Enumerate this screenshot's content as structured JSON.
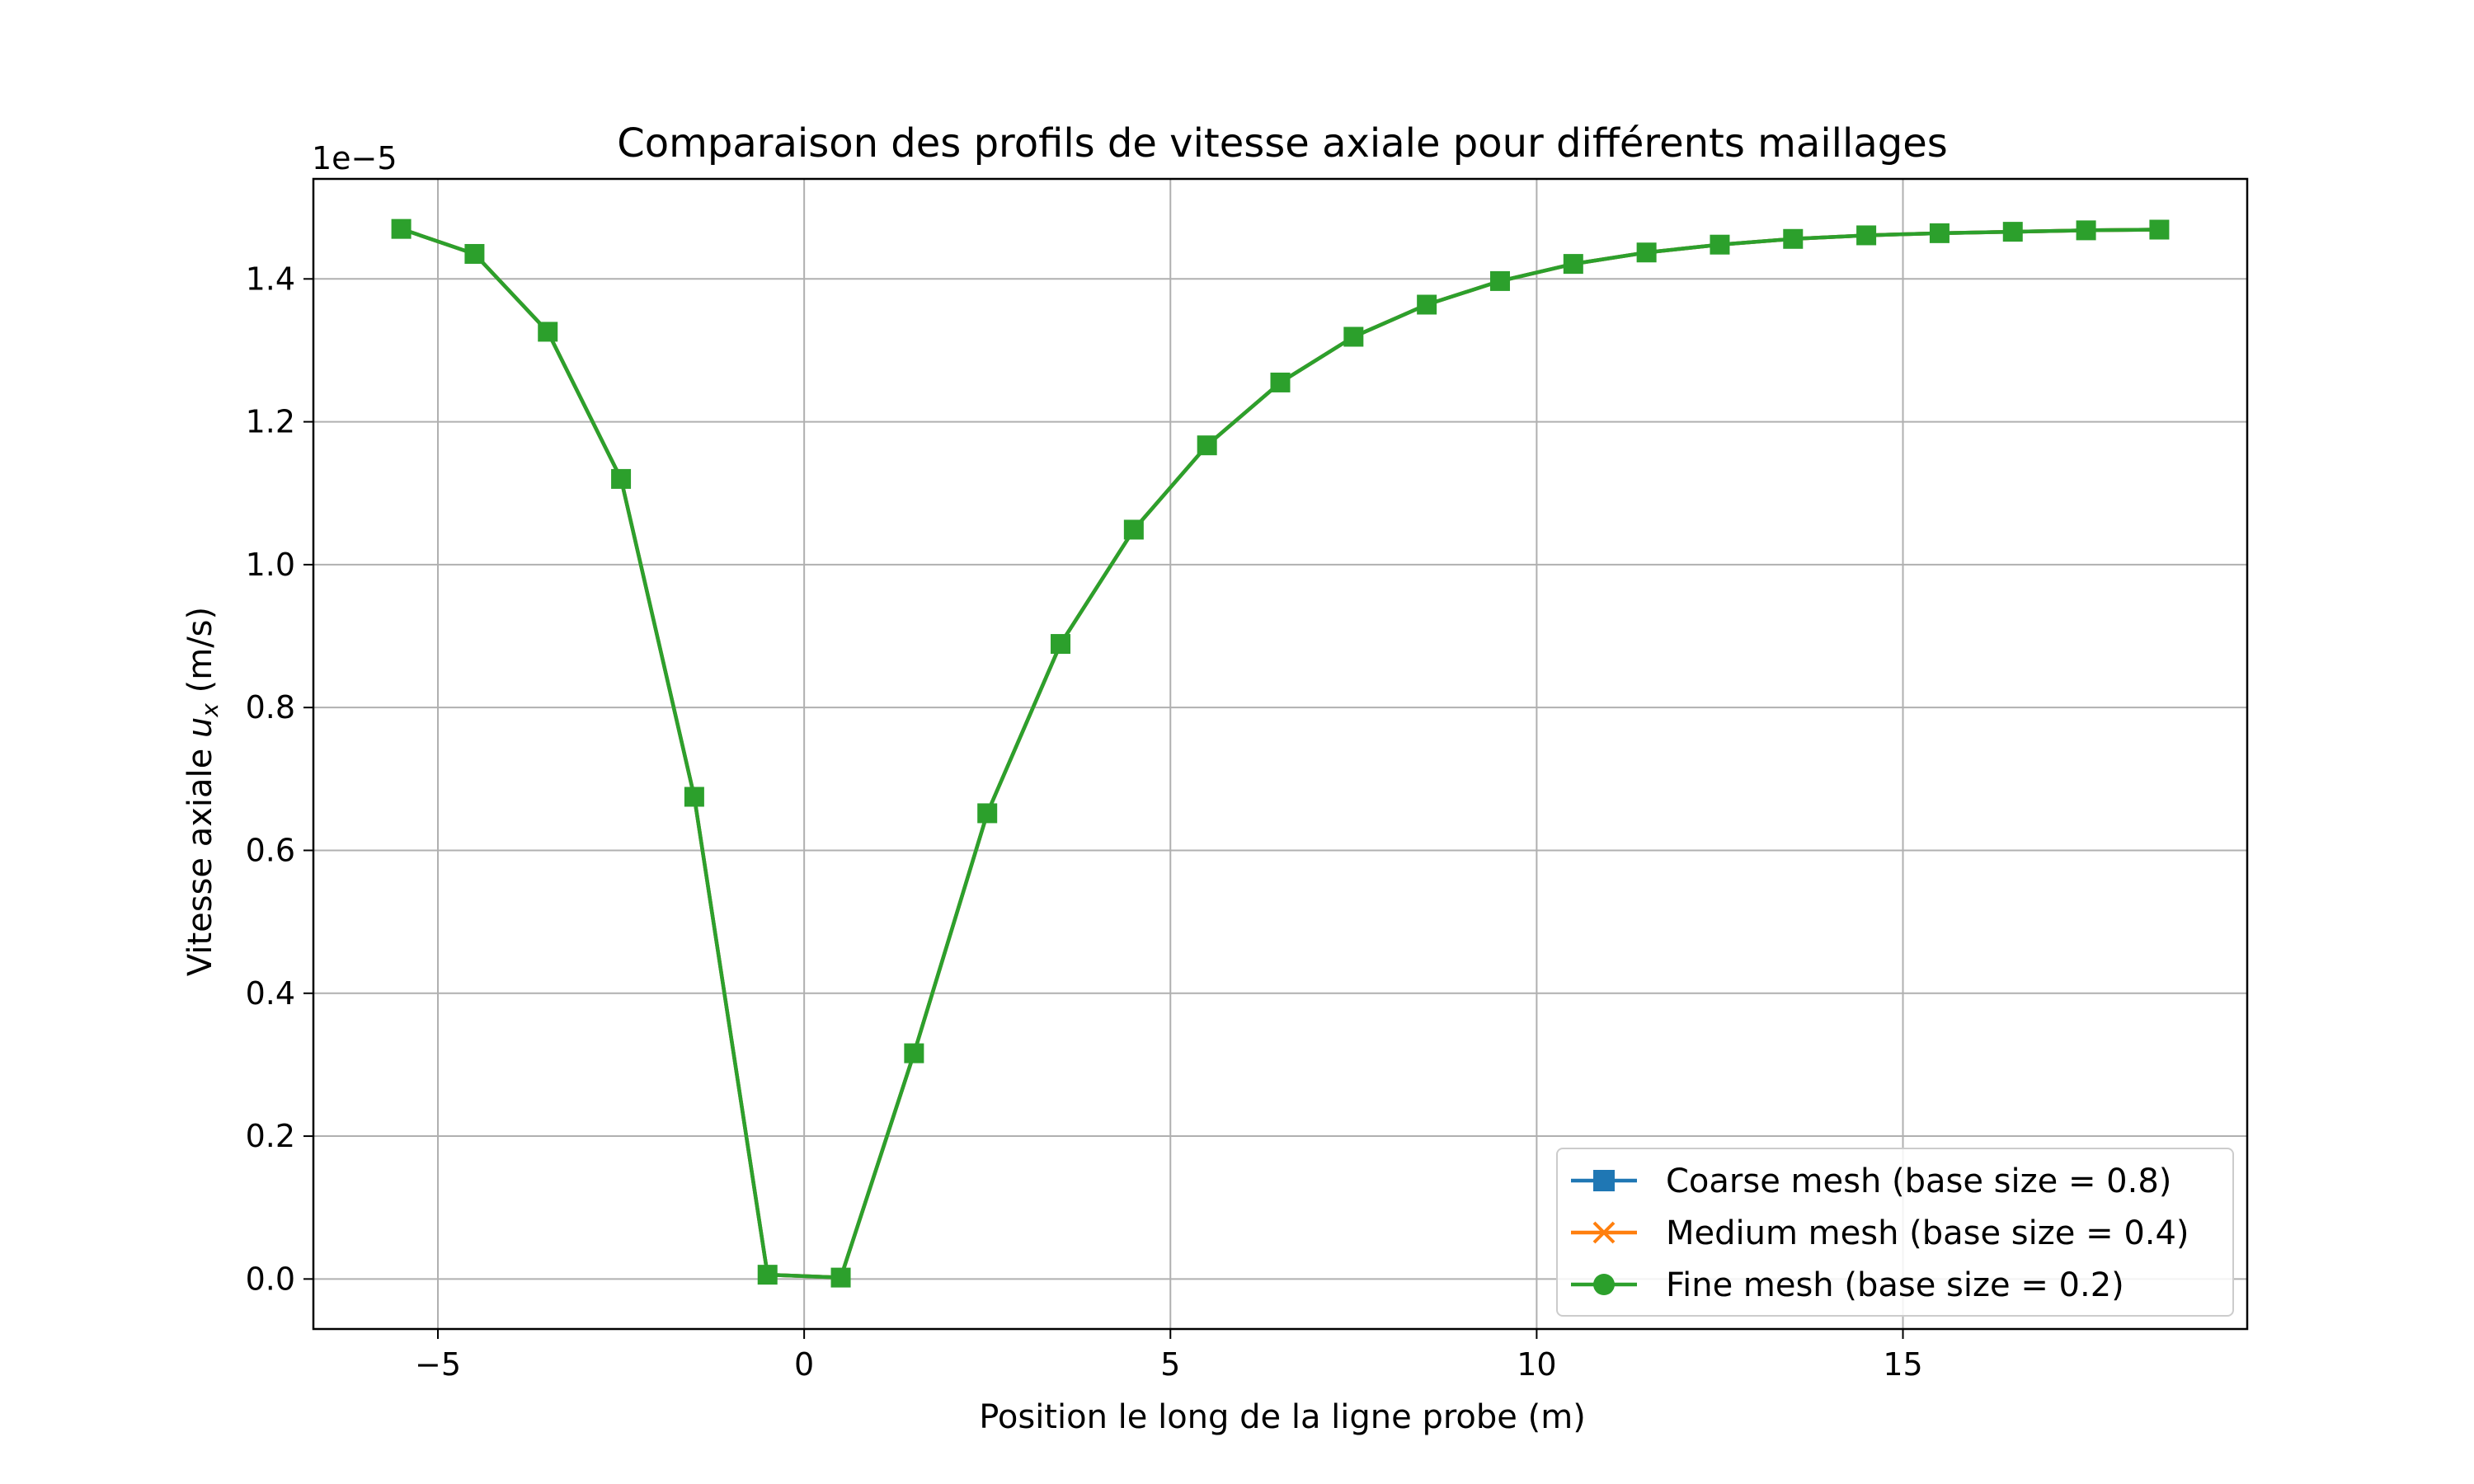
{
  "chart_data": {
    "type": "line",
    "title": "Comparaison des profils de vitesse axiale pour différents maillages",
    "xlabel": "Position le long de la ligne probe (m)",
    "ylabel_main": "Vitesse axiale ",
    "ylabel_symbol": "u",
    "ylabel_subscript": "x",
    "ylabel_unit": " (m/s)",
    "y_offset_text": "1e−5",
    "y_scale": 1e-05,
    "xlim": [
      -6.7,
      19.7
    ],
    "ylim": [
      -0.07,
      1.54
    ],
    "xticks": [
      -5,
      0,
      5,
      10,
      15
    ],
    "xtick_labels": [
      "−5",
      "0",
      "5",
      "10",
      "15"
    ],
    "yticks": [
      0.0,
      0.2,
      0.4,
      0.6,
      0.8,
      1.0,
      1.2,
      1.4
    ],
    "ytick_labels": [
      "0.0",
      "0.2",
      "0.4",
      "0.6",
      "0.8",
      "1.0",
      "1.2",
      "1.4"
    ],
    "grid": true,
    "legend_position": "bottom-right",
    "x": [
      -5.5,
      -4.5,
      -3.5,
      -2.5,
      -1.5,
      -0.5,
      0.5,
      1.5,
      2.5,
      3.5,
      4.5,
      5.5,
      6.5,
      7.5,
      8.5,
      9.5,
      10.5,
      11.5,
      12.5,
      13.5,
      14.5,
      15.5,
      16.5,
      17.5,
      18.5
    ],
    "series": [
      {
        "name": "Coarse mesh (base size = 0.8)",
        "color": "#1f77b4",
        "marker": "square",
        "values": [
          1.47,
          1.435,
          1.326,
          1.12,
          0.675,
          0.006,
          0.002,
          0.316,
          0.652,
          0.889,
          1.049,
          1.167,
          1.255,
          1.319,
          1.364,
          1.397,
          1.421,
          1.437,
          1.448,
          1.456,
          1.461,
          1.464,
          1.466,
          1.468,
          1.469
        ]
      },
      {
        "name": "Medium mesh (base size = 0.4)",
        "color": "#ff7f0e",
        "marker": "x",
        "values": [
          1.47,
          1.435,
          1.326,
          1.12,
          0.675,
          0.006,
          0.002,
          0.316,
          0.652,
          0.889,
          1.049,
          1.167,
          1.255,
          1.319,
          1.364,
          1.397,
          1.421,
          1.437,
          1.448,
          1.456,
          1.461,
          1.464,
          1.466,
          1.468,
          1.469
        ]
      },
      {
        "name": "Fine mesh (base size = 0.2)",
        "color": "#2ca02c",
        "marker": "circle",
        "values": [
          1.47,
          1.435,
          1.326,
          1.12,
          0.675,
          0.006,
          0.002,
          0.316,
          0.652,
          0.889,
          1.049,
          1.167,
          1.255,
          1.319,
          1.364,
          1.397,
          1.421,
          1.437,
          1.448,
          1.456,
          1.461,
          1.464,
          1.466,
          1.468,
          1.469
        ]
      }
    ],
    "display_marker_square_color": "#2ca02c"
  }
}
